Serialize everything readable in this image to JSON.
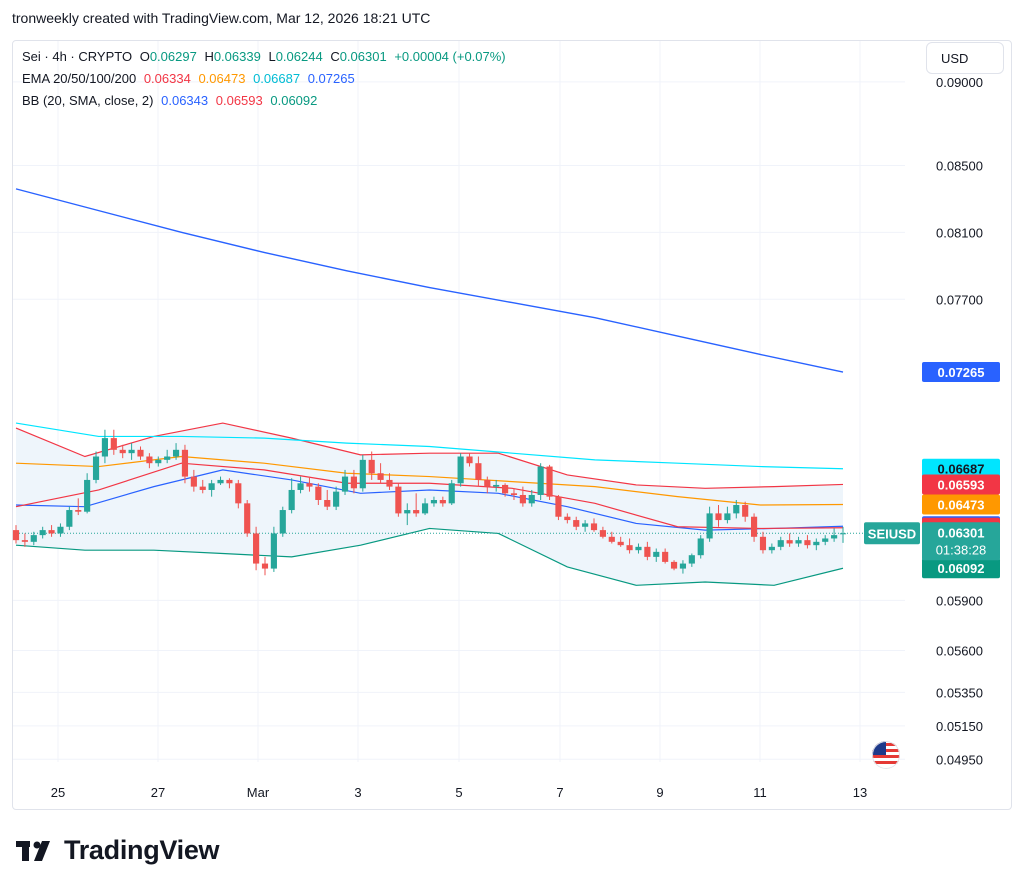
{
  "header": {
    "attribution": "tronweekly created with TradingView.com, Mar 12, 2026 18:21 UTC"
  },
  "legend": {
    "symbol": "Sei · 4h · CRYPTO",
    "o_label": "O",
    "o": "0.06297",
    "h_label": "H",
    "h": "0.06339",
    "l_label": "L",
    "l": "0.06244",
    "c_label": "C",
    "c": "0.06301",
    "change": "+0.00004 (+0.07%)",
    "ema_label": "EMA 20/50/100/200",
    "ema20": "0.06334",
    "ema50": "0.06473",
    "ema100": "0.06687",
    "ema200": "0.07265",
    "bb_label": "BB (20, SMA, close, 2)",
    "bb_basis": "0.06343",
    "bb_upper": "0.06593",
    "bb_lower": "0.06092"
  },
  "currency_button": "USD",
  "price_tags": {
    "ticker": "SEIUSD",
    "last_price": "0.06301",
    "countdown": "01:38:28"
  },
  "brand": "TradingView",
  "colors": {
    "up": "#26a69a",
    "down": "#ef5350",
    "ema20": "#f23645",
    "ema50": "#ff9800",
    "ema100": "#00e5ff",
    "ema200": "#2962ff",
    "bb_basis": "#2962ff",
    "bb_upper": "#f23645",
    "bb_lower": "#089981",
    "bb_fill": "#eef5fb",
    "grid": "#f0f3fa"
  },
  "chart_data": {
    "type": "candlestick",
    "symbol": "Sei",
    "interval": "4h",
    "ylim": [
      0.0485,
      0.0925
    ],
    "y_ticks": [
      "0.09000",
      "0.08500",
      "0.08100",
      "0.07700",
      "0.05900",
      "0.05600",
      "0.05350",
      "0.05150",
      "0.04950"
    ],
    "x_ticks": [
      "25",
      "27",
      "Mar",
      "3",
      "5",
      "7",
      "9",
      "11",
      "13"
    ],
    "axis_tags": [
      {
        "value": "0.07265",
        "color": "#2962ff"
      },
      {
        "value": "0.06687",
        "color": "#00e5ff"
      },
      {
        "value": "0.06593",
        "color": "#f23645"
      },
      {
        "value": "0.06473",
        "color": "#ff9800"
      },
      {
        "value": "0.06343",
        "color": "#2962ff"
      },
      {
        "value": "0.06334",
        "color": "#f23645"
      },
      {
        "value": "0.06092",
        "color": "#089981"
      }
    ],
    "candles": [
      [
        0.0632,
        0.0635,
        0.0624,
        0.0626
      ],
      [
        0.0626,
        0.063,
        0.0622,
        0.0625
      ],
      [
        0.0625,
        0.0631,
        0.0623,
        0.0629
      ],
      [
        0.0629,
        0.0634,
        0.0627,
        0.0632
      ],
      [
        0.0632,
        0.0635,
        0.0628,
        0.063
      ],
      [
        0.063,
        0.0636,
        0.0628,
        0.0634
      ],
      [
        0.0634,
        0.0646,
        0.0632,
        0.0644
      ],
      [
        0.0644,
        0.0651,
        0.0641,
        0.0643
      ],
      [
        0.0643,
        0.0666,
        0.0642,
        0.0662
      ],
      [
        0.0662,
        0.0679,
        0.066,
        0.0676
      ],
      [
        0.0676,
        0.0692,
        0.0672,
        0.0687
      ],
      [
        0.0687,
        0.0692,
        0.0677,
        0.068
      ],
      [
        0.068,
        0.0683,
        0.0675,
        0.0678
      ],
      [
        0.0678,
        0.0684,
        0.0674,
        0.068
      ],
      [
        0.068,
        0.0682,
        0.0674,
        0.0676
      ],
      [
        0.0676,
        0.0678,
        0.0669,
        0.0672
      ],
      [
        0.0672,
        0.0676,
        0.067,
        0.0674
      ],
      [
        0.0674,
        0.068,
        0.0672,
        0.0676
      ],
      [
        0.0676,
        0.0684,
        0.0674,
        0.068
      ],
      [
        0.068,
        0.0683,
        0.066,
        0.0664
      ],
      [
        0.0664,
        0.0668,
        0.0655,
        0.0658
      ],
      [
        0.0658,
        0.0662,
        0.0654,
        0.0656
      ],
      [
        0.0656,
        0.0662,
        0.0652,
        0.066
      ],
      [
        0.066,
        0.0664,
        0.0659,
        0.0662
      ],
      [
        0.0662,
        0.0663,
        0.0657,
        0.066
      ],
      [
        0.066,
        0.0662,
        0.0645,
        0.0648
      ],
      [
        0.0648,
        0.065,
        0.0628,
        0.063
      ],
      [
        0.063,
        0.0634,
        0.0608,
        0.0612
      ],
      [
        0.0612,
        0.0616,
        0.0605,
        0.0609
      ],
      [
        0.0609,
        0.0634,
        0.0607,
        0.063
      ],
      [
        0.063,
        0.0646,
        0.0628,
        0.0644
      ],
      [
        0.0644,
        0.0663,
        0.0642,
        0.0656
      ],
      [
        0.0656,
        0.0664,
        0.0654,
        0.066
      ],
      [
        0.066,
        0.0664,
        0.0655,
        0.0658
      ],
      [
        0.0658,
        0.066,
        0.0647,
        0.065
      ],
      [
        0.065,
        0.0656,
        0.0644,
        0.0646
      ],
      [
        0.0646,
        0.0658,
        0.0644,
        0.0655
      ],
      [
        0.0655,
        0.0668,
        0.0653,
        0.0664
      ],
      [
        0.0664,
        0.0668,
        0.0654,
        0.0657
      ],
      [
        0.0657,
        0.0677,
        0.0655,
        0.0674
      ],
      [
        0.0674,
        0.0679,
        0.0662,
        0.0666
      ],
      [
        0.0666,
        0.0672,
        0.066,
        0.0662
      ],
      [
        0.0662,
        0.0666,
        0.0656,
        0.0658
      ],
      [
        0.0658,
        0.066,
        0.064,
        0.0642
      ],
      [
        0.0642,
        0.0648,
        0.0635,
        0.0644
      ],
      [
        0.0644,
        0.0654,
        0.064,
        0.0642
      ],
      [
        0.0642,
        0.0651,
        0.0641,
        0.0648
      ],
      [
        0.0648,
        0.0652,
        0.0646,
        0.065
      ],
      [
        0.065,
        0.0652,
        0.0646,
        0.0648
      ],
      [
        0.0648,
        0.0662,
        0.0647,
        0.066
      ],
      [
        0.066,
        0.0678,
        0.0658,
        0.0676
      ],
      [
        0.0676,
        0.0678,
        0.067,
        0.0672
      ],
      [
        0.0672,
        0.0676,
        0.0658,
        0.0662
      ],
      [
        0.0662,
        0.0664,
        0.0654,
        0.0658
      ],
      [
        0.0658,
        0.0662,
        0.0655,
        0.0659
      ],
      [
        0.0659,
        0.066,
        0.0652,
        0.0654
      ],
      [
        0.0654,
        0.0657,
        0.065,
        0.0653
      ],
      [
        0.0653,
        0.0658,
        0.0646,
        0.0648
      ],
      [
        0.0648,
        0.0656,
        0.0646,
        0.0653
      ],
      [
        0.0653,
        0.0672,
        0.065,
        0.067
      ],
      [
        0.067,
        0.0671,
        0.065,
        0.0652
      ],
      [
        0.0652,
        0.0653,
        0.0638,
        0.064
      ],
      [
        0.064,
        0.0642,
        0.0636,
        0.0638
      ],
      [
        0.0638,
        0.064,
        0.0632,
        0.0634
      ],
      [
        0.0634,
        0.0638,
        0.0631,
        0.0636
      ],
      [
        0.0636,
        0.0639,
        0.0631,
        0.0632
      ],
      [
        0.0632,
        0.0634,
        0.0627,
        0.0628
      ],
      [
        0.0628,
        0.0631,
        0.0624,
        0.0625
      ],
      [
        0.0625,
        0.0628,
        0.0622,
        0.0623
      ],
      [
        0.0623,
        0.0627,
        0.0618,
        0.062
      ],
      [
        0.062,
        0.0624,
        0.0618,
        0.0622
      ],
      [
        0.0622,
        0.0625,
        0.0614,
        0.0616
      ],
      [
        0.0616,
        0.0621,
        0.0613,
        0.0619
      ],
      [
        0.0619,
        0.0621,
        0.0612,
        0.0613
      ],
      [
        0.0613,
        0.0614,
        0.0608,
        0.0609
      ],
      [
        0.0609,
        0.0614,
        0.0606,
        0.0612
      ],
      [
        0.0612,
        0.0618,
        0.061,
        0.0617
      ],
      [
        0.0617,
        0.0629,
        0.0615,
        0.0627
      ],
      [
        0.0627,
        0.0646,
        0.0625,
        0.0642
      ],
      [
        0.0642,
        0.0647,
        0.0634,
        0.0638
      ],
      [
        0.0638,
        0.0646,
        0.0636,
        0.0642
      ],
      [
        0.0642,
        0.065,
        0.0639,
        0.0647
      ],
      [
        0.0647,
        0.0649,
        0.0637,
        0.064
      ],
      [
        0.064,
        0.0642,
        0.0625,
        0.0628
      ],
      [
        0.0628,
        0.0631,
        0.0618,
        0.062
      ],
      [
        0.062,
        0.0624,
        0.0618,
        0.0622
      ],
      [
        0.0622,
        0.0628,
        0.062,
        0.0626
      ],
      [
        0.0626,
        0.063,
        0.0622,
        0.0624
      ],
      [
        0.0624,
        0.0628,
        0.0622,
        0.0626
      ],
      [
        0.0626,
        0.0629,
        0.0621,
        0.0623
      ],
      [
        0.0623,
        0.0627,
        0.062,
        0.0625
      ],
      [
        0.0625,
        0.0629,
        0.0623,
        0.0627
      ],
      [
        0.0627,
        0.0633,
        0.0625,
        0.0629
      ],
      [
        0.06297,
        0.06339,
        0.06244,
        0.06301
      ]
    ],
    "ema200": [
      0.0836,
      0.0823,
      0.081,
      0.0798,
      0.0787,
      0.0777,
      0.0768,
      0.0759,
      0.0748,
      0.0737,
      0.07265
    ],
    "ema100": [
      0.0696,
      0.0688,
      0.0688,
      0.0687,
      0.0684,
      0.0682,
      0.0678,
      0.0674,
      0.0672,
      0.067,
      0.06687
    ],
    "ema50": [
      0.0672,
      0.067,
      0.0676,
      0.0672,
      0.0666,
      0.0664,
      0.0661,
      0.0658,
      0.0652,
      0.0647,
      0.06473
    ],
    "ema20": [
      0.0646,
      0.0656,
      0.0672,
      0.0668,
      0.066,
      0.066,
      0.0657,
      0.0648,
      0.0634,
      0.0633,
      0.06334
    ],
    "bb_upper": [
      0.0693,
      0.0676,
      0.0688,
      0.0696,
      0.0687,
      0.0677,
      0.0678,
      0.0678,
      0.0665,
      0.0659,
      0.0657,
      0.0658,
      0.06593
    ],
    "bb_basis": [
      0.0647,
      0.0646,
      0.0658,
      0.0668,
      0.0662,
      0.0654,
      0.0656,
      0.0654,
      0.0646,
      0.0636,
      0.0632,
      0.0633,
      0.06343
    ],
    "bb_lower": [
      0.0623,
      0.062,
      0.062,
      0.0618,
      0.0616,
      0.0623,
      0.0633,
      0.063,
      0.061,
      0.0599,
      0.0601,
      0.0599,
      0.06092
    ]
  }
}
